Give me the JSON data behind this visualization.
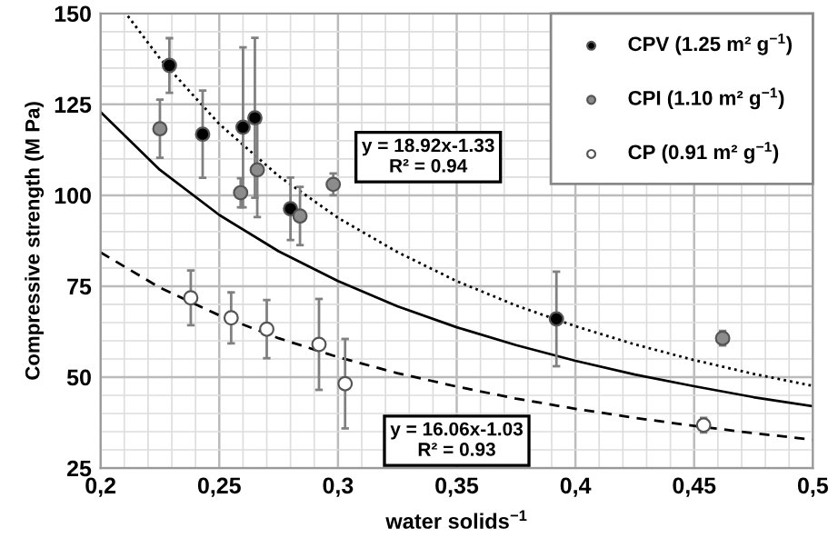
{
  "chart_data": {
    "type": "scatter",
    "xlabel": "water solids$^{−1}$",
    "ylabel": "Compressive strength (M Pa)",
    "xlim": [
      0.2,
      0.5
    ],
    "ylim": [
      25,
      150
    ],
    "xticks": [
      {
        "value": 0.2,
        "label": "0,2"
      },
      {
        "value": 0.25,
        "label": "0,25"
      },
      {
        "value": 0.3,
        "label": "0,3"
      },
      {
        "value": 0.35,
        "label": "0,35"
      },
      {
        "value": 0.4,
        "label": "0,4"
      },
      {
        "value": 0.45,
        "label": "0,45"
      },
      {
        "value": 0.5,
        "label": "0,5"
      }
    ],
    "yticks": [
      25,
      50,
      75,
      100,
      125,
      150
    ],
    "grid": true,
    "legend": "top right",
    "marker": "circle",
    "series": [
      {
        "name": "CPV (1.25 m² g$^{−1}$)",
        "color": "#000000",
        "x": [
          0.229,
          0.243,
          0.26,
          0.265,
          0.28,
          0.392
        ],
        "values": [
          135.7,
          116.8,
          118.7,
          121.3,
          96.3,
          66
        ],
        "errors": [
          7.5,
          12,
          22,
          22,
          8.6,
          13
        ]
      },
      {
        "name": "CPI (1.10 m² g$^{−1}$)",
        "color": "#8c8c8c",
        "x": [
          0.225,
          0.259,
          0.266,
          0.284,
          0.298,
          0.462
        ],
        "values": [
          118.3,
          100.7,
          107,
          94.3,
          103,
          60.7
        ],
        "errors": [
          8,
          4,
          13,
          8,
          3,
          2
        ]
      },
      {
        "name": "CP (0.91 m² g$^{−1}$)",
        "color": "#ffffff",
        "x": [
          0.238,
          0.255,
          0.27,
          0.292,
          0.303,
          0.454
        ],
        "values": [
          71.8,
          66.3,
          63.2,
          59,
          48.2,
          36.8
        ],
        "errors": [
          7.5,
          7,
          8,
          12.5,
          12.3,
          2
        ]
      },
      {
        "type": "line",
        "color": "#000000",
        "line_style": "dotted",
        "marker": "none",
        "x": [
          0.2115,
          0.225,
          0.25,
          0.275,
          0.3,
          0.325,
          0.35,
          0.375,
          0.4,
          0.425,
          0.45,
          0.475,
          0.5
        ],
        "values": [
          149.3,
          137.6,
          119.6,
          105.3,
          93.8,
          84.4,
          76.4,
          69.7,
          64.0,
          59.0,
          54.7,
          50.9,
          47.6
        ]
      },
      {
        "type": "line",
        "color": "#000000",
        "line_style": "solid",
        "marker": "none",
        "x": [
          0.2,
          0.225,
          0.25,
          0.275,
          0.3,
          0.325,
          0.35,
          0.375,
          0.4,
          0.425,
          0.45,
          0.475,
          0.5
        ],
        "values": [
          122.9,
          107.0,
          94.6,
          84.6,
          76.4,
          69.5,
          63.7,
          58.8,
          54.5,
          50.7,
          47.5,
          44.5,
          42.0
        ]
      },
      {
        "type": "line",
        "color": "#000000",
        "line_style": "dashed",
        "marker": "none",
        "x": [
          0.2,
          0.225,
          0.25,
          0.275,
          0.3,
          0.325,
          0.35,
          0.375,
          0.4,
          0.425,
          0.45,
          0.475,
          0.5
        ],
        "values": [
          84.3,
          74.6,
          67.0,
          60.7,
          55.5,
          51.1,
          47.4,
          44.1,
          41.3,
          38.8,
          36.6,
          34.6,
          32.8
        ]
      }
    ],
    "annotations": [
      "y = 18.92x-1.33\nR² = 0.94",
      "y = 16.06x-1.03\nR² = 0.93"
    ]
  }
}
